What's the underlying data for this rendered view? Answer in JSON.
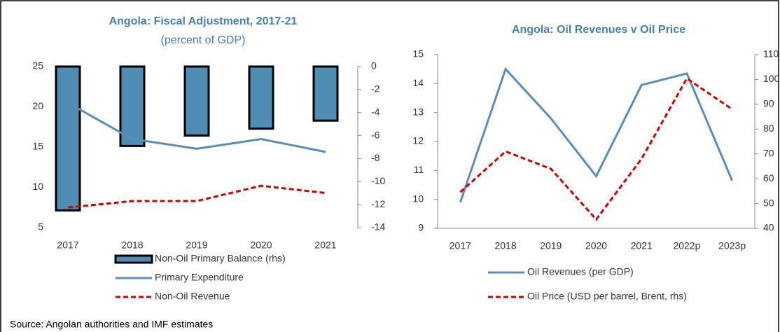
{
  "chart_data": [
    {
      "type": "bar",
      "title": "Angola: Fiscal Adjustment, 2017-21",
      "subtitle": "(percent of GDP)",
      "categories": [
        "2017",
        "2018",
        "2019",
        "2020",
        "2021"
      ],
      "ylim": [
        5,
        25
      ],
      "yticks": [
        5,
        10,
        15,
        20,
        25
      ],
      "y2lim": [
        -14,
        0
      ],
      "y2ticks": [
        -14,
        -12,
        -10,
        -8,
        -6,
        -4,
        -2,
        0
      ],
      "series": [
        {
          "name": "Non-Oil Primary Balance (rhs)",
          "type": "bar",
          "axis": "y2",
          "color": "#4f8db5",
          "values": [
            -12.5,
            -6.9,
            -6.0,
            -5.4,
            -4.7
          ]
        },
        {
          "name": "Primary Expenditure",
          "type": "line",
          "color": "#5b8db8",
          "values": [
            20.5,
            16.0,
            14.8,
            16.0,
            14.4
          ]
        },
        {
          "name": "Non-Oil Revenue",
          "type": "line",
          "dash": true,
          "color": "#cc0000",
          "values": [
            7.5,
            8.3,
            8.3,
            10.2,
            9.3
          ]
        }
      ]
    },
    {
      "type": "line",
      "title": "Angola: Oil Revenues v Oil Price",
      "categories": [
        "2017",
        "2018",
        "2019",
        "2020",
        "2021",
        "2022p",
        "2023p"
      ],
      "ylim": [
        9,
        15
      ],
      "yticks": [
        9,
        10,
        11,
        12,
        13,
        14,
        15
      ],
      "y2lim": [
        40,
        110
      ],
      "y2ticks": [
        40,
        50,
        60,
        70,
        80,
        90,
        100,
        110
      ],
      "series": [
        {
          "name": "Oil Revenues (per GDP)",
          "type": "line",
          "color": "#5b8db8",
          "values": [
            9.9,
            14.5,
            12.8,
            10.8,
            13.95,
            14.35,
            10.65
          ]
        },
        {
          "name": "Oil Price (USD per barrel, Brent, rhs)",
          "type": "line",
          "dash": true,
          "axis": "y2",
          "color": "#cc0000",
          "values": [
            54.6,
            71,
            64,
            43.6,
            68,
            100.4,
            88
          ]
        }
      ]
    }
  ],
  "source": "Source: Angolan authorities and IMF estimates"
}
